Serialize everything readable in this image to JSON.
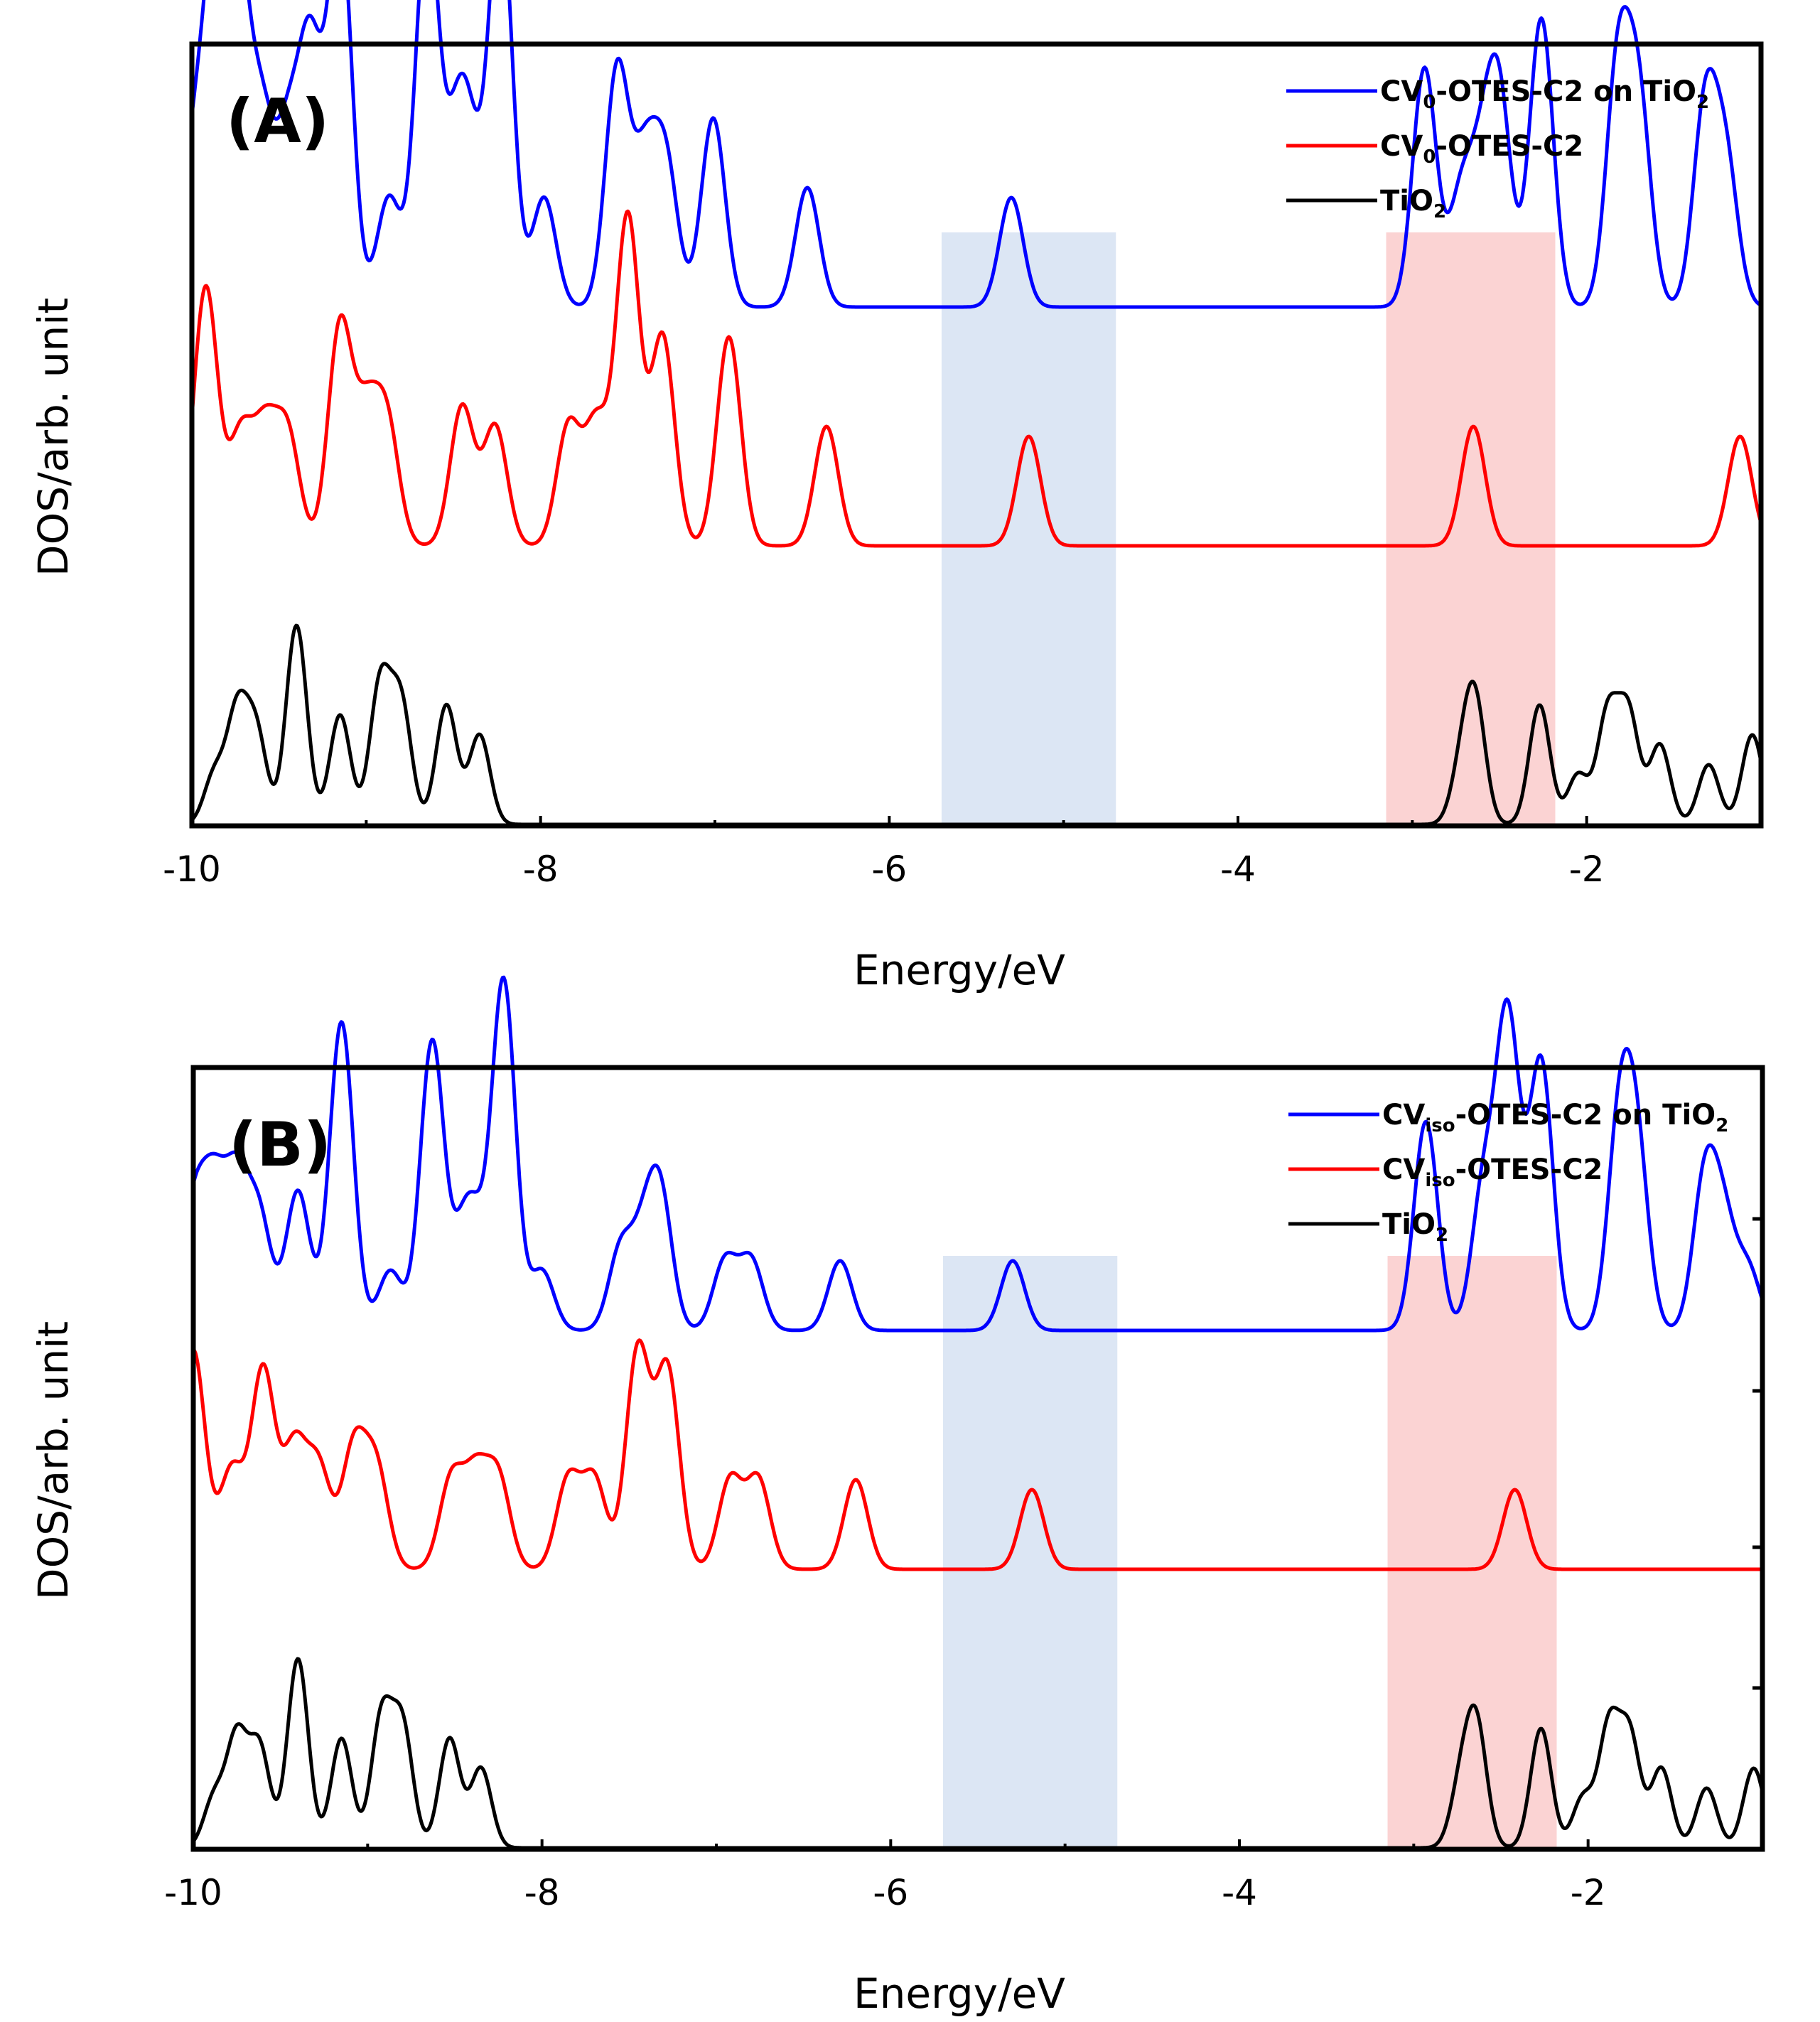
{
  "figure": {
    "colors": {
      "blue": "#0000ff",
      "red": "#ff0000",
      "black": "#000000",
      "blue_band": "#dce6f4",
      "red_band": "#fbd3d3"
    }
  },
  "chart_data": [
    {
      "type": "line",
      "panel_label": "(A)",
      "xlabel": "Energy/eV",
      "ylabel": "DOS/arb. unit",
      "xlim": [
        -10,
        -1
      ],
      "x_ticks": [
        -10,
        -8,
        -6,
        -4,
        -2
      ],
      "x_tick_labels": [
        "-10",
        "-8",
        "-6",
        "-4",
        "-2"
      ],
      "grid": false,
      "legend_position": "top-right",
      "legend": [
        {
          "prefix": "CV",
          "sub": "0",
          "suffix": "-OTES-C2 on TiO",
          "sub2": "2",
          "color": "#0000ff"
        },
        {
          "prefix": "CV",
          "sub": "0",
          "suffix": "-OTES-C2",
          "sub2": "",
          "color": "#ff0000"
        },
        {
          "prefix": "TiO",
          "sub": "2",
          "suffix": "",
          "sub2": "",
          "color": "#000000"
        }
      ],
      "shaded_regions": [
        {
          "x": [
            -5.7,
            -4.7
          ],
          "color": "#dce6f4"
        },
        {
          "x": [
            -3.15,
            -2.18
          ],
          "color": "#fbd3d3"
        }
      ],
      "series": [
        {
          "color": "#0000ff",
          "baseline": 0.52,
          "width": 0.16,
          "peaks": [
            [
              -10.0,
              0.14
            ],
            [
              -9.87,
              0.33
            ],
            [
              -9.74,
              0.33
            ],
            [
              -9.6,
              0.18
            ],
            [
              -9.45,
              0.16
            ],
            [
              -9.32,
              0.25
            ],
            [
              -9.15,
              0.39
            ],
            [
              -8.87,
              0.11
            ],
            [
              -8.65,
              0.39
            ],
            [
              -8.48,
              0.15
            ],
            [
              -8.4,
              0.12
            ],
            [
              -8.23,
              0.41
            ],
            [
              -7.98,
              0.11
            ],
            [
              -7.56,
              0.24
            ],
            [
              -7.4,
              0.14
            ],
            [
              -7.28,
              0.14
            ],
            [
              -7.01,
              0.19
            ],
            [
              -6.47,
              0.12
            ],
            [
              -5.3,
              0.11
            ],
            [
              -2.93,
              0.24
            ],
            [
              -2.72,
              0.11
            ],
            [
              -2.6,
              0.12
            ],
            [
              -2.5,
              0.2
            ],
            [
              -2.26,
              0.29
            ],
            [
              -1.82,
              0.24
            ],
            [
              -1.7,
              0.2
            ],
            [
              -1.32,
              0.2
            ],
            [
              -1.2,
              0.14
            ],
            [
              -1.0,
              0.0
            ]
          ]
        },
        {
          "color": "#ff0000",
          "baseline": 0.28,
          "width": 0.16,
          "peaks": [
            [
              -9.92,
              0.26
            ],
            [
              -9.72,
              0.11
            ],
            [
              -9.58,
              0.11
            ],
            [
              -9.45,
              0.11
            ],
            [
              -9.15,
              0.22
            ],
            [
              -9.0,
              0.12
            ],
            [
              -8.88,
              0.12
            ],
            [
              -8.45,
              0.14
            ],
            [
              -8.26,
              0.12
            ],
            [
              -7.84,
              0.12
            ],
            [
              -7.68,
              0.12
            ],
            [
              -7.5,
              0.33
            ],
            [
              -7.3,
              0.21
            ],
            [
              -6.92,
              0.21
            ],
            [
              -6.36,
              0.12
            ],
            [
              -5.2,
              0.11
            ],
            [
              -2.65,
              0.12
            ],
            [
              -1.12,
              0.11
            ]
          ]
        },
        {
          "color": "#000000",
          "baseline": 0.0,
          "width": 0.14,
          "peaks": [
            [
              -9.87,
              0.05
            ],
            [
              -9.74,
              0.11
            ],
            [
              -9.63,
              0.09
            ],
            [
              -9.4,
              0.2
            ],
            [
              -9.15,
              0.11
            ],
            [
              -8.92,
              0.14
            ],
            [
              -8.8,
              0.12
            ],
            [
              -8.54,
              0.12
            ],
            [
              -8.35,
              0.09
            ],
            [
              -2.72,
              0.05
            ],
            [
              -2.64,
              0.12
            ],
            [
              -2.27,
              0.12
            ],
            [
              -2.05,
              0.05
            ],
            [
              -1.88,
              0.11
            ],
            [
              -1.76,
              0.11
            ],
            [
              -1.58,
              0.08
            ],
            [
              -1.3,
              0.06
            ],
            [
              -1.05,
              0.09
            ]
          ]
        }
      ]
    },
    {
      "type": "line",
      "panel_label": "(B)",
      "xlabel": "Energy/eV",
      "ylabel": "DOS/arb. unit",
      "xlim": [
        -10,
        -1
      ],
      "x_ticks": [
        -10,
        -8,
        -6,
        -4,
        -2
      ],
      "x_tick_labels": [
        "-10",
        "-8",
        "-6",
        "-4",
        "-2"
      ],
      "grid": false,
      "legend_position": "top-right",
      "legend": [
        {
          "prefix": "CV",
          "sub": "iso",
          "suffix": "-OTES-C2 on TiO",
          "sub2": "2",
          "color": "#0000ff"
        },
        {
          "prefix": "CV",
          "sub": "iso",
          "suffix": "-OTES-C2",
          "sub2": "",
          "color": "#ff0000"
        },
        {
          "prefix": "TiO",
          "sub": "2",
          "suffix": "",
          "sub2": "",
          "color": "#000000"
        }
      ],
      "shaded_regions": [
        {
          "x": [
            -5.7,
            -4.7
          ],
          "color": "#dce6f4"
        },
        {
          "x": [
            -3.15,
            -2.18
          ],
          "color": "#fbd3d3"
        }
      ],
      "series": [
        {
          "color": "#0000ff",
          "baseline": 0.52,
          "width": 0.16,
          "peaks": [
            [
              -10.0,
              0.12
            ],
            [
              -9.88,
              0.13
            ],
            [
              -9.75,
              0.14
            ],
            [
              -9.62,
              0.11
            ],
            [
              -9.4,
              0.14
            ],
            [
              -9.15,
              0.31
            ],
            [
              -8.87,
              0.06
            ],
            [
              -8.63,
              0.29
            ],
            [
              -8.45,
              0.08
            ],
            [
              -8.38,
              0.07
            ],
            [
              -8.22,
              0.35
            ],
            [
              -8.0,
              0.06
            ],
            [
              -7.55,
              0.08
            ],
            [
              -7.42,
              0.08
            ],
            [
              -7.32,
              0.13
            ],
            [
              -6.95,
              0.07
            ],
            [
              -6.8,
              0.07
            ],
            [
              -6.29,
              0.07
            ],
            [
              -5.3,
              0.07
            ],
            [
              -2.93,
              0.21
            ],
            [
              -2.6,
              0.14
            ],
            [
              -2.46,
              0.31
            ],
            [
              -2.27,
              0.27
            ],
            [
              -1.82,
              0.2
            ],
            [
              -1.72,
              0.17
            ],
            [
              -1.33,
              0.15
            ],
            [
              -1.22,
              0.1
            ],
            [
              -1.08,
              0.06
            ]
          ]
        },
        {
          "color": "#ff0000",
          "baseline": 0.28,
          "width": 0.16,
          "peaks": [
            [
              -10.0,
              0.22
            ],
            [
              -9.78,
              0.1
            ],
            [
              -9.6,
              0.2
            ],
            [
              -9.42,
              0.12
            ],
            [
              -9.28,
              0.1
            ],
            [
              -9.08,
              0.12
            ],
            [
              -8.95,
              0.1
            ],
            [
              -8.52,
              0.09
            ],
            [
              -8.38,
              0.09
            ],
            [
              -8.25,
              0.09
            ],
            [
              -7.85,
              0.09
            ],
            [
              -7.7,
              0.09
            ],
            [
              -7.45,
              0.22
            ],
            [
              -7.28,
              0.2
            ],
            [
              -6.92,
              0.09
            ],
            [
              -6.76,
              0.09
            ],
            [
              -6.2,
              0.09
            ],
            [
              -5.19,
              0.08
            ],
            [
              -2.42,
              0.08
            ]
          ]
        },
        {
          "color": "#000000",
          "baseline": 0.0,
          "width": 0.14,
          "peaks": [
            [
              -9.88,
              0.05
            ],
            [
              -9.75,
              0.11
            ],
            [
              -9.62,
              0.1
            ],
            [
              -9.4,
              0.19
            ],
            [
              -9.15,
              0.11
            ],
            [
              -8.92,
              0.13
            ],
            [
              -8.8,
              0.12
            ],
            [
              -8.53,
              0.11
            ],
            [
              -8.35,
              0.08
            ],
            [
              -2.73,
              0.06
            ],
            [
              -2.64,
              0.12
            ],
            [
              -2.27,
              0.12
            ],
            [
              -2.03,
              0.05
            ],
            [
              -1.88,
              0.12
            ],
            [
              -1.76,
              0.11
            ],
            [
              -1.58,
              0.08
            ],
            [
              -1.32,
              0.06
            ],
            [
              -1.05,
              0.08
            ]
          ]
        }
      ]
    }
  ]
}
